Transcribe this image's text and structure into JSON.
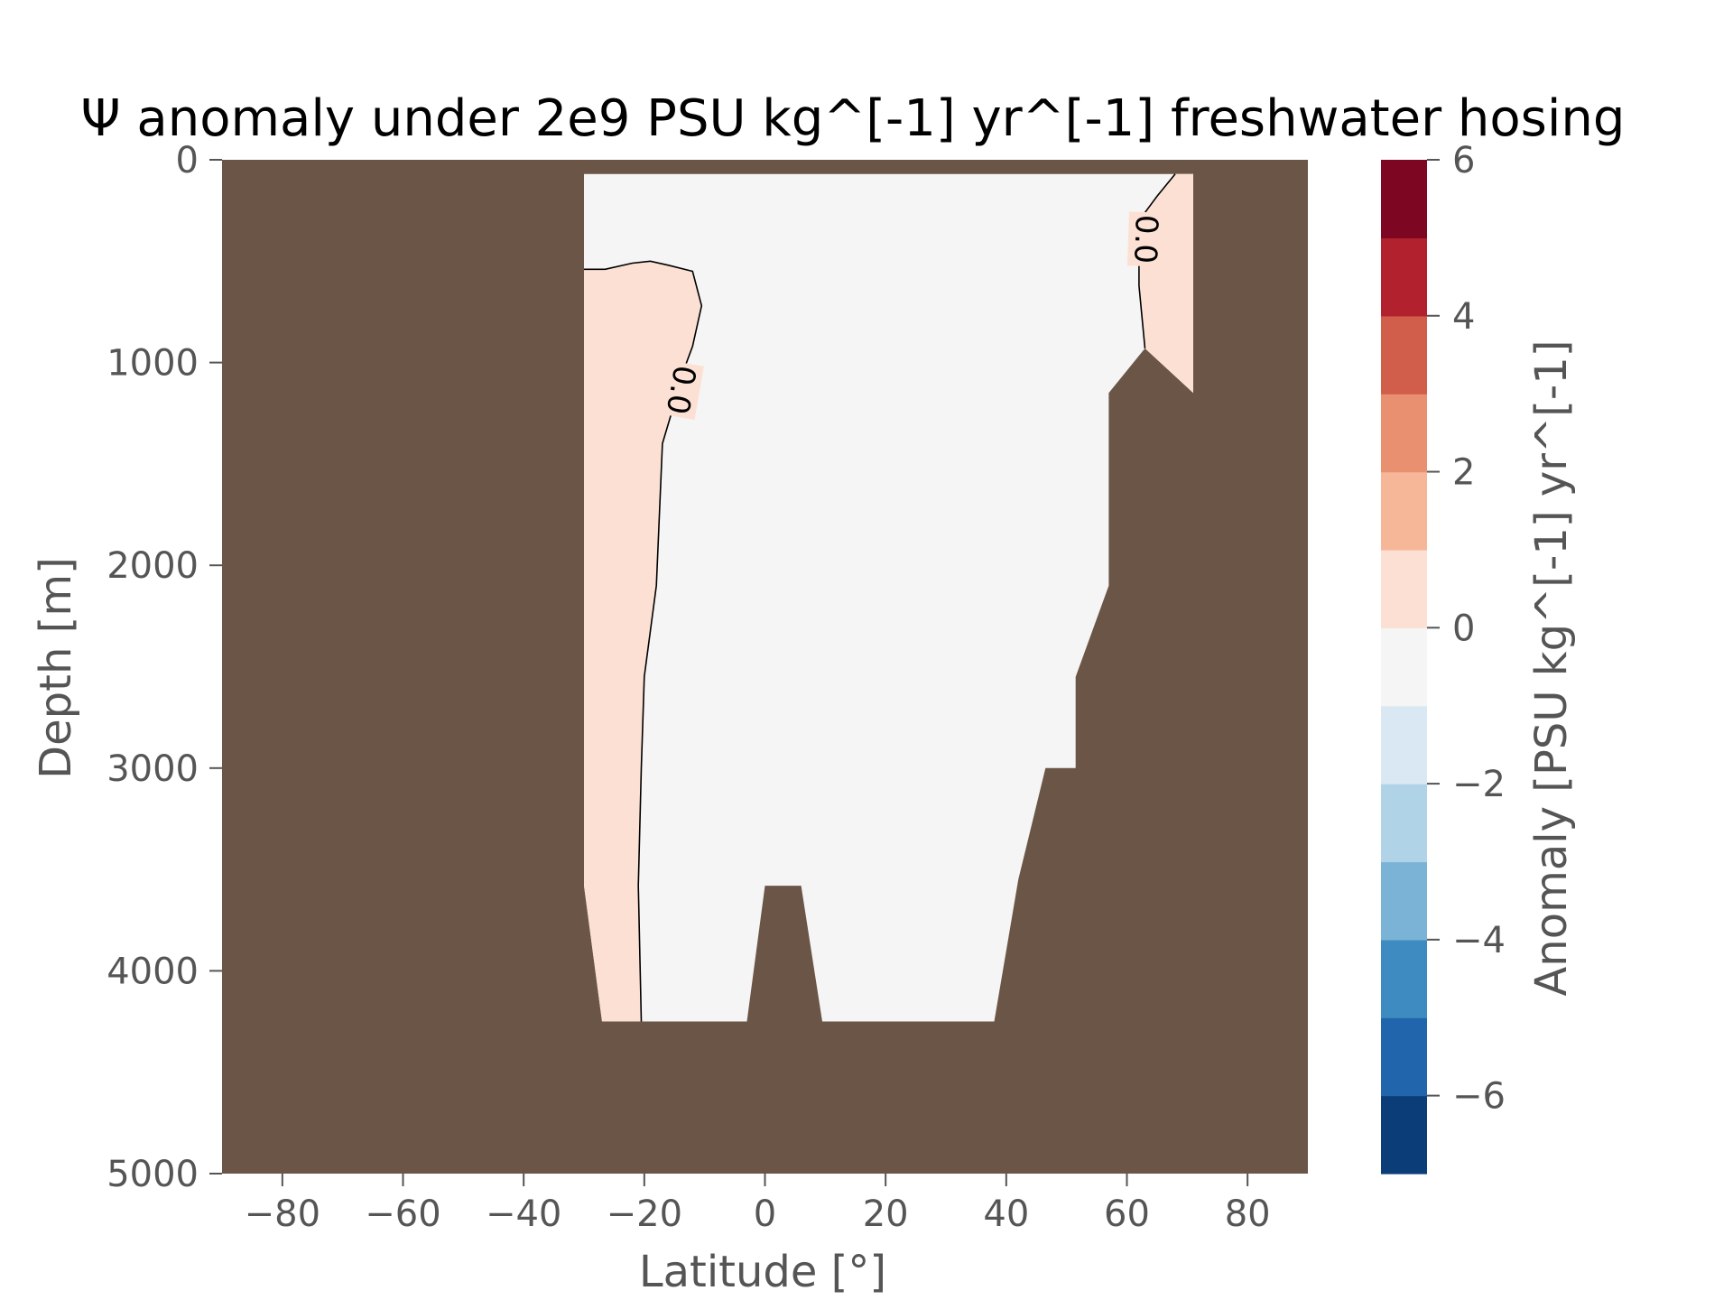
{
  "chart_data": {
    "type": "heatmap",
    "title": "Ψ anomaly under 2e9 PSU kg^[-1] yr^[-1] freshwater hosing",
    "xlabel": "Latitude [°]",
    "ylabel": "Depth [m]",
    "xlim": [
      -90,
      90
    ],
    "ylim": [
      5000,
      0
    ],
    "xticks": [
      -80,
      -60,
      -40,
      -20,
      0,
      20,
      40,
      60,
      80
    ],
    "yticks": [
      0,
      1000,
      2000,
      3000,
      4000,
      5000
    ],
    "grid": false,
    "land_color": "#6b5547",
    "colorbar": {
      "label": "Anomaly [PSU kg^[-1] yr^[-1]",
      "ticks": [
        6,
        4,
        2,
        0,
        -2,
        -4,
        -6
      ],
      "tick_labels": [
        "6",
        "4",
        "2",
        "0",
        "−2",
        "−4",
        "−6"
      ],
      "levels": [
        -7,
        -6,
        -5,
        -4,
        -3,
        -2,
        -1,
        0,
        1,
        2,
        3,
        4,
        5,
        6
      ],
      "colors": [
        "#0b3d78",
        "#2166ac",
        "#3d8bc0",
        "#7ab3d6",
        "#b1d3e7",
        "#d9e8f2",
        "#f5f5f5",
        "#fce0d3",
        "#f6b698",
        "#e8906f",
        "#d15d4b",
        "#b2212e",
        "#7d0622"
      ]
    },
    "ocean": {
      "value_range": [
        -1,
        0
      ],
      "color": "#f5f5f5",
      "outline": [
        [
          -30,
          70
        ],
        [
          71,
          70
        ],
        [
          71,
          1150
        ],
        [
          63,
          930
        ],
        [
          57,
          1150
        ],
        [
          57,
          2100
        ],
        [
          51.5,
          2550
        ],
        [
          51.5,
          3000
        ],
        [
          46.5,
          3000
        ],
        [
          42,
          3550
        ],
        [
          38,
          4250
        ],
        [
          9.5,
          4250
        ],
        [
          6,
          3580
        ],
        [
          0,
          3580
        ],
        [
          -3,
          4250
        ],
        [
          -27,
          4250
        ],
        [
          -30,
          3580
        ]
      ]
    },
    "positive_regions": [
      {
        "value_range": [
          0,
          1
        ],
        "color": "#fce0d3",
        "outline": [
          [
            -30,
            540
          ],
          [
            -26.5,
            540
          ],
          [
            -22,
            510
          ],
          [
            -19,
            500
          ],
          [
            -16,
            520
          ],
          [
            -12,
            550
          ],
          [
            -10.5,
            720
          ],
          [
            -12,
            920
          ],
          [
            -13,
            1000
          ],
          [
            -17,
            1400
          ],
          [
            -18,
            2100
          ],
          [
            -20,
            2550
          ],
          [
            -20.5,
            3000
          ],
          [
            -21,
            3580
          ],
          [
            -20.5,
            4250
          ],
          [
            -27,
            4250
          ],
          [
            -30,
            3580
          ]
        ]
      },
      {
        "value_range": [
          0,
          1
        ],
        "color": "#fce0d3",
        "outline": [
          [
            68,
            70
          ],
          [
            71,
            70
          ],
          [
            71,
            1150
          ],
          [
            63,
            930
          ],
          [
            62,
            620
          ],
          [
            62,
            300
          ],
          [
            65,
            180
          ]
        ]
      }
    ],
    "contours": [
      {
        "level": 0.0,
        "label": "0.0",
        "points": [
          [
            -30,
            540
          ],
          [
            -26.5,
            540
          ],
          [
            -22,
            510
          ],
          [
            -19,
            500
          ],
          [
            -16,
            520
          ],
          [
            -12,
            550
          ],
          [
            -10.5,
            720
          ],
          [
            -12,
            920
          ],
          [
            -13,
            1000
          ],
          [
            -17,
            1400
          ],
          [
            -18,
            2100
          ],
          [
            -20,
            2550
          ],
          [
            -20.5,
            3000
          ],
          [
            -21,
            3580
          ],
          [
            -20.5,
            4250
          ]
        ]
      },
      {
        "level": 0.0,
        "label": "0.0",
        "points": [
          [
            68,
            70
          ],
          [
            65,
            180
          ],
          [
            62,
            300
          ],
          [
            62,
            620
          ],
          [
            63,
            930
          ]
        ]
      }
    ]
  }
}
